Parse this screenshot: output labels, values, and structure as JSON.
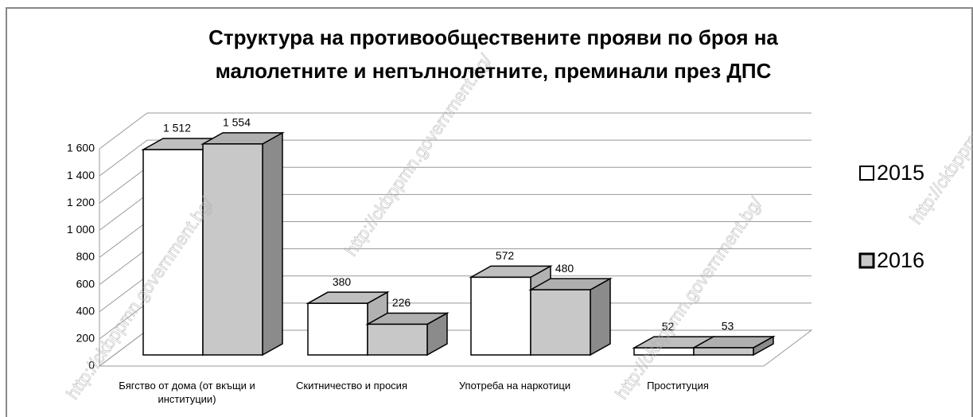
{
  "chart_data": {
    "type": "bar3d",
    "title": [
      "Структура на противообществените прояви по броя на",
      "малолетните и непълнолетните, преминали през ДПС"
    ],
    "categories": [
      "Бягство от дома (от вкъщи и институции)",
      "Скитничество и просия",
      "Употреба на наркотици",
      "Проституция"
    ],
    "series": [
      {
        "name": "2015",
        "color": "#ffffff",
        "values": [
          1512,
          380,
          572,
          52
        ],
        "value_labels": [
          "1 512",
          "380",
          "572",
          "52"
        ]
      },
      {
        "name": "2016",
        "color": "#c8c8c8",
        "values": [
          1554,
          226,
          480,
          53
        ],
        "value_labels": [
          "1 554",
          "226",
          "480",
          "53"
        ]
      }
    ],
    "ylim": [
      0,
      1600
    ],
    "yticks": [
      0,
      200,
      400,
      600,
      800,
      {
        "value": 1000,
        "label": "1 000"
      },
      {
        "value": 1200,
        "label": "1 200"
      },
      {
        "value": 1400,
        "label": "1 400"
      },
      {
        "value": 1600,
        "label": "1 600"
      }
    ],
    "grid": true,
    "legend": "right",
    "watermark": "http://ckbppmn.government.bg/"
  }
}
